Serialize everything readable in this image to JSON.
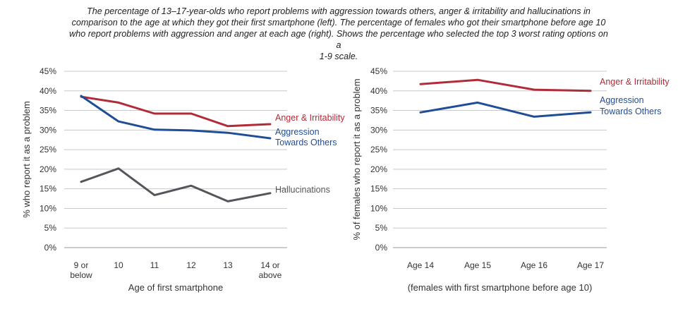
{
  "title_lines": [
    "The percentage of 13–17-year-olds who report problems with aggression towards others, anger & irritability and hallucinations in",
    "comparison to the age at which they got their first smartphone (left). The percentage of females who got their smartphone before age 10",
    "who report problems with aggression and anger at each age (right). Shows the percentage who selected the top 3 worst rating options on a",
    "1-9 scale."
  ],
  "colors": {
    "anger": "#b22b38",
    "aggression": "#1f4e96",
    "hallucinations": "#55565b",
    "grid": "#c8c8c8",
    "text": "#333333"
  },
  "chart_data": [
    {
      "type": "line",
      "categories": [
        [
          "9 or",
          "below"
        ],
        [
          "10"
        ],
        [
          "11"
        ],
        [
          "12"
        ],
        [
          "13"
        ],
        [
          "14 or",
          "above"
        ]
      ],
      "ylim": [
        0,
        45
      ],
      "yticks": [
        "0%",
        "5%",
        "10%",
        "15%",
        "20%",
        "25%",
        "30%",
        "35%",
        "40%",
        "45%"
      ],
      "xlabel": "Age of first smartphone",
      "ylabel": "% who report it as a problem",
      "grid": true,
      "series": [
        {
          "name": "Anger & Irritability",
          "label_lines": [
            "Anger & Irritability"
          ],
          "color_key": "anger",
          "values": [
            38.5,
            37.0,
            34.2,
            34.2,
            31.0,
            31.5
          ]
        },
        {
          "name": "Aggression Towards Others",
          "label_lines": [
            "Aggression",
            "Towards Others"
          ],
          "color_key": "aggression",
          "values": [
            38.7,
            32.2,
            30.1,
            29.9,
            29.3,
            27.9
          ]
        },
        {
          "name": "Hallucinations",
          "label_lines": [
            "Hallucinations"
          ],
          "color_key": "hallucinations",
          "values": [
            16.8,
            20.2,
            13.4,
            15.8,
            11.8,
            13.9
          ]
        }
      ]
    },
    {
      "type": "line",
      "categories": [
        [
          "Age 14"
        ],
        [
          "Age 15"
        ],
        [
          "Age 16"
        ],
        [
          "Age 17"
        ]
      ],
      "ylim": [
        0,
        45
      ],
      "yticks": [
        "0%",
        "5%",
        "10%",
        "15%",
        "20%",
        "25%",
        "30%",
        "35%",
        "40%",
        "45%"
      ],
      "xlabel": "(females with first smartphone before age 10)",
      "ylabel": "% of females who report it as a problem",
      "grid": true,
      "series": [
        {
          "name": "Anger & Irritability",
          "label_lines": [
            "Anger & Irritability"
          ],
          "color_key": "anger",
          "values": [
            41.7,
            42.8,
            40.3,
            40.0
          ]
        },
        {
          "name": "Aggression Towards Others",
          "label_lines": [
            "Aggression",
            "Towards Others"
          ],
          "color_key": "aggression",
          "values": [
            34.5,
            37.0,
            33.4,
            34.5
          ]
        }
      ]
    }
  ]
}
